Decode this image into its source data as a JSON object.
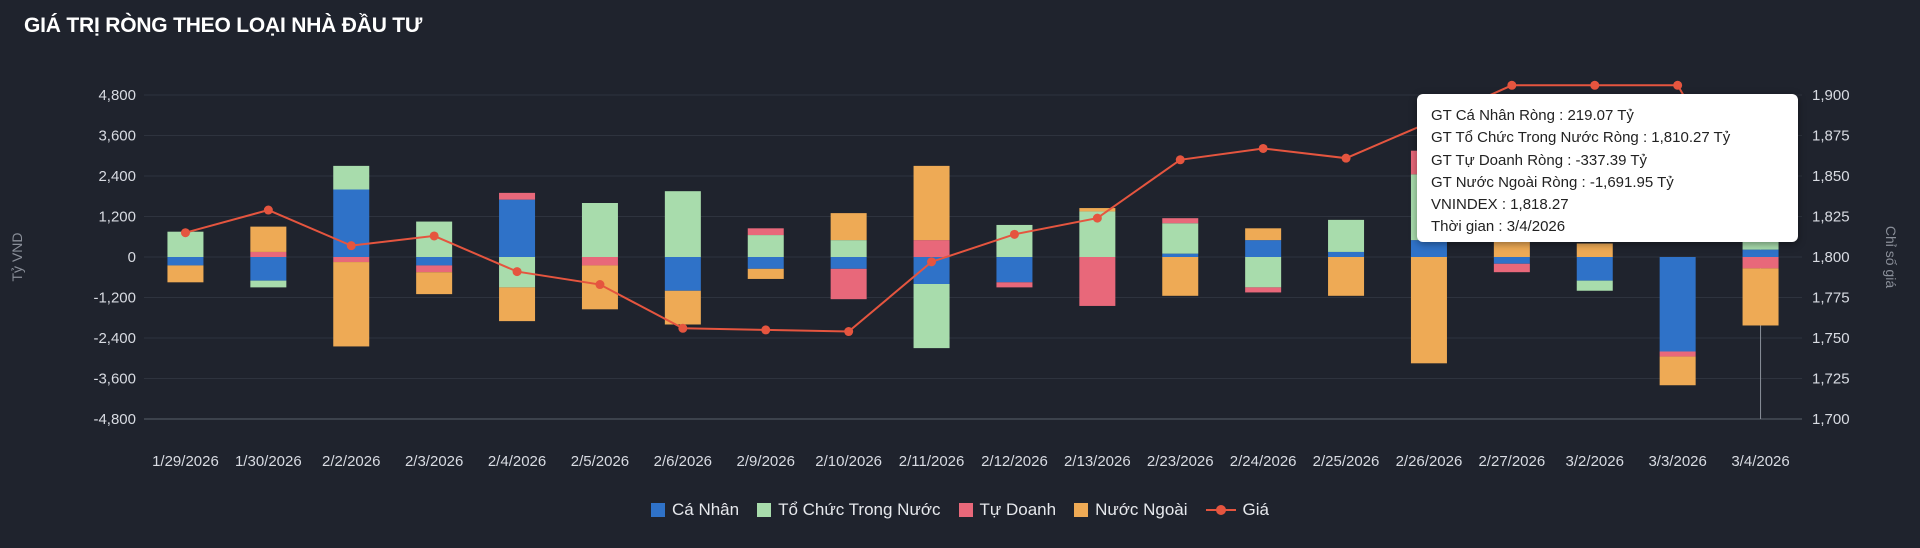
{
  "title": "GIÁ TRỊ RÒNG THEO LOẠI NHÀ ĐẦU TƯ",
  "chart_data": {
    "type": "bar",
    "stacked": true,
    "categories": [
      "1/29/2026",
      "1/30/2026",
      "2/2/2026",
      "2/3/2026",
      "2/4/2026",
      "2/5/2026",
      "2/6/2026",
      "2/9/2026",
      "2/10/2026",
      "2/11/2026",
      "2/12/2026",
      "2/13/2026",
      "2/23/2026",
      "2/24/2026",
      "2/25/2026",
      "2/26/2026",
      "2/27/2026",
      "3/2/2026",
      "3/3/2026",
      "3/4/2026"
    ],
    "ylabel": "Tỷ VND",
    "y2label": "Chỉ số giá",
    "ylim": [
      -4800,
      4800
    ],
    "yticks": [
      "4,800",
      "3,600",
      "2,400",
      "1,200",
      "0",
      "-1,200",
      "-2,400",
      "-3,600",
      "-4,800"
    ],
    "y2lim": [
      1700,
      1900
    ],
    "y2ticks": [
      "1,900",
      "1,875",
      "1,850",
      "1,825",
      "1,800",
      "1,775",
      "1,750",
      "1,725",
      "1,700"
    ],
    "series": [
      {
        "name": "Cá Nhân",
        "color": "#2f72c8",
        "values": [
          -250,
          -700,
          2000,
          -250,
          1700,
          0,
          -1000,
          -350,
          -350,
          -800,
          -750,
          0,
          100,
          500,
          150,
          500,
          -200,
          -700,
          -2800,
          219.07
        ]
      },
      {
        "name": "Tổ Chức Trong Nước",
        "color": "#a8dcac",
        "values": [
          750,
          -200,
          700,
          1050,
          -900,
          1600,
          1950,
          650,
          500,
          -1900,
          950,
          1350,
          900,
          -900,
          950,
          1950,
          0,
          -300,
          0,
          1810.27
        ]
      },
      {
        "name": "Tự Doanh",
        "color": "#e8687a",
        "values": [
          0,
          150,
          -150,
          -200,
          200,
          -250,
          0,
          200,
          -900,
          500,
          -150,
          -1450,
          150,
          -150,
          0,
          700,
          -250,
          0,
          -150,
          -337.39
        ]
      },
      {
        "name": "Nước Ngoài",
        "color": "#eeaa55",
        "values": [
          -500,
          750,
          -2500,
          -650,
          -1000,
          -1300,
          -1000,
          -300,
          800,
          2200,
          0,
          100,
          -1150,
          350,
          -1150,
          -3150,
          500,
          400,
          -850,
          -1691.95
        ]
      }
    ],
    "line": {
      "name": "Giá",
      "color": "#e5553f",
      "axis": "right",
      "values": [
        1815,
        1829,
        1807,
        1813,
        1791,
        1783,
        1756,
        1755,
        1754,
        1797,
        1814,
        1824,
        1860,
        1867,
        1861,
        1883,
        1906,
        1906,
        1906,
        1818.27
      ]
    },
    "legend": "bottom",
    "grid": true
  },
  "tooltip": {
    "lines": [
      "GT Cá Nhân Ròng  : 219.07 Tỷ",
      "GT Tổ Chức Trong Nước Ròng : 1,810.27 Tỷ",
      "GT Tự Doanh Ròng : -337.39 Tỷ",
      "GT Nước Ngoài Ròng : -1,691.95 Tỷ",
      "VNINDEX : 1,818.27",
      "Thời gian : 3/4/2026"
    ]
  }
}
